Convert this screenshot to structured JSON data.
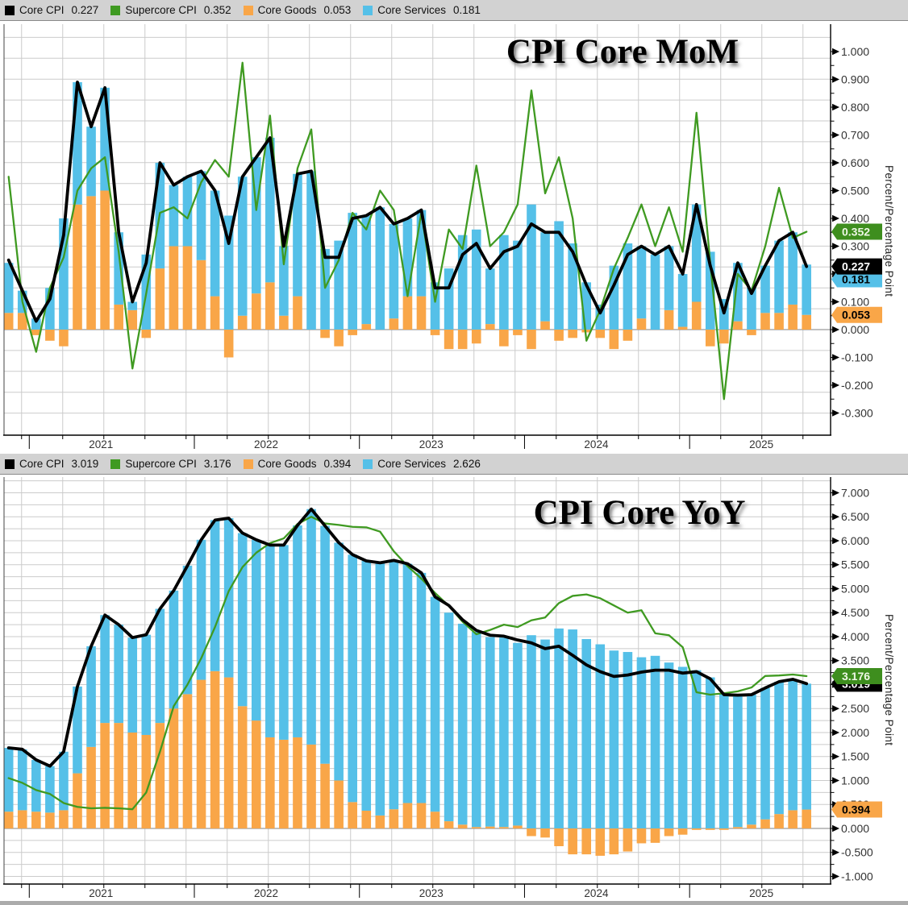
{
  "colors": {
    "black": "#000000",
    "green": "#3F9A21",
    "orange": "#F9A648",
    "blue": "#55C0E8",
    "green_tag": "#3E8E1E",
    "legend_bg": "#D2D2D2",
    "grid": "#CBCBCB",
    "zero_line": "#9B9B9B",
    "axis_line": "#000000",
    "axis_text": "#333333",
    "bottom_bar": "#ABABAB"
  },
  "chart_data": [
    {
      "type": "bar+line",
      "title": "CPI Core MoM",
      "y_axis_title": "Percent/Percentage Point",
      "legend": [
        {
          "label": "Core CPI",
          "value": "0.227",
          "color_key": "black"
        },
        {
          "label": "Supercore CPI",
          "value": "0.352",
          "color_key": "green"
        },
        {
          "label": "Core Goods",
          "value": "0.053",
          "color_key": "orange"
        },
        {
          "label": "Core Services",
          "value": "0.181",
          "color_key": "blue"
        }
      ],
      "x_start": "2020-11",
      "x_end": "2025-09",
      "years": [
        {
          "label": "2021",
          "month_index": 2
        },
        {
          "label": "2022",
          "month_index": 14
        },
        {
          "label": "2023",
          "month_index": 26
        },
        {
          "label": "2024",
          "month_index": 38
        },
        {
          "label": "2025",
          "month_index": 50
        }
      ],
      "y_axis": {
        "max": 1.0,
        "min": -0.3,
        "label_step": 0.1,
        "minor_step": 0.05,
        "decimals": 3
      },
      "series": {
        "core_goods": [
          0.06,
          0.06,
          -0.02,
          -0.04,
          -0.06,
          0.45,
          0.48,
          0.5,
          0.09,
          0.07,
          -0.03,
          0.22,
          0.3,
          0.3,
          0.25,
          0.12,
          -0.1,
          0.05,
          0.13,
          0.17,
          0.05,
          0.12,
          0.0,
          -0.03,
          -0.06,
          -0.02,
          0.02,
          0.0,
          0.04,
          0.12,
          0.12,
          -0.02,
          -0.07,
          -0.07,
          -0.05,
          0.02,
          -0.06,
          -0.02,
          -0.07,
          0.03,
          -0.04,
          -0.03,
          -0.01,
          -0.03,
          -0.07,
          -0.04,
          0.04,
          0.0,
          0.07,
          0.01,
          0.1,
          -0.06,
          -0.05,
          0.03,
          -0.02,
          0.06,
          0.06,
          0.09,
          0.053
        ],
        "core_services": [
          0.18,
          0.08,
          0.04,
          0.15,
          0.4,
          0.44,
          0.25,
          0.37,
          0.26,
          0.03,
          0.27,
          0.38,
          0.22,
          0.25,
          0.32,
          0.38,
          0.41,
          0.5,
          0.49,
          0.52,
          0.25,
          0.44,
          0.57,
          0.29,
          0.32,
          0.42,
          0.39,
          0.44,
          0.34,
          0.28,
          0.31,
          0.17,
          0.22,
          0.34,
          0.36,
          0.2,
          0.34,
          0.32,
          0.45,
          0.32,
          0.39,
          0.31,
          0.17,
          0.09,
          0.23,
          0.31,
          0.26,
          0.27,
          0.23,
          0.19,
          0.35,
          0.28,
          0.11,
          0.21,
          0.15,
          0.17,
          0.26,
          0.26,
          0.181
        ],
        "core_cpi": [
          0.25,
          0.14,
          0.03,
          0.11,
          0.34,
          0.89,
          0.73,
          0.87,
          0.35,
          0.1,
          0.24,
          0.6,
          0.52,
          0.55,
          0.57,
          0.5,
          0.31,
          0.55,
          0.62,
          0.69,
          0.3,
          0.56,
          0.57,
          0.26,
          0.26,
          0.4,
          0.41,
          0.44,
          0.38,
          0.4,
          0.43,
          0.15,
          0.15,
          0.27,
          0.31,
          0.22,
          0.28,
          0.3,
          0.38,
          0.35,
          0.35,
          0.28,
          0.16,
          0.06,
          0.16,
          0.27,
          0.3,
          0.27,
          0.3,
          0.2,
          0.45,
          0.23,
          0.06,
          0.24,
          0.13,
          0.23,
          0.32,
          0.35,
          0.227
        ],
        "supercore_cpi": [
          0.55,
          0.1,
          -0.08,
          0.15,
          0.26,
          0.5,
          0.58,
          0.62,
          0.28,
          -0.14,
          0.13,
          0.42,
          0.44,
          0.4,
          0.53,
          0.61,
          0.55,
          0.96,
          0.43,
          0.77,
          0.235,
          0.58,
          0.72,
          0.15,
          0.25,
          0.42,
          0.36,
          0.5,
          0.43,
          0.12,
          0.42,
          0.1,
          0.36,
          0.29,
          0.59,
          0.3,
          0.35,
          0.45,
          0.86,
          0.49,
          0.62,
          0.4,
          -0.04,
          0.07,
          0.22,
          0.33,
          0.45,
          0.3,
          0.44,
          0.28,
          0.78,
          0.24,
          -0.25,
          0.2,
          0.14,
          0.3,
          0.51,
          0.33,
          0.352
        ]
      },
      "axis_tags": [
        {
          "value": "0.181",
          "color_key": "blue",
          "text_color": "#000000"
        },
        {
          "value": "0.227",
          "color_key": "black",
          "text_color": "#ffffff"
        },
        {
          "value": "0.053",
          "color_key": "orange",
          "text_color": "#000000"
        },
        {
          "value": "0.352",
          "color_key": "green_tag",
          "text_color": "#eef7e6"
        }
      ]
    },
    {
      "type": "bar+line",
      "title": "CPI Core YoY",
      "y_axis_title": "Percent/Percentage Point",
      "legend": [
        {
          "label": "Core CPI",
          "value": "3.019",
          "color_key": "black"
        },
        {
          "label": "Supercore CPI",
          "value": "3.176",
          "color_key": "green"
        },
        {
          "label": "Core Goods",
          "value": "0.394",
          "color_key": "orange"
        },
        {
          "label": "Core Services",
          "value": "2.626",
          "color_key": "blue"
        }
      ],
      "x_start": "2020-11",
      "x_end": "2025-09",
      "years": [
        {
          "label": "2021",
          "month_index": 2
        },
        {
          "label": "2022",
          "month_index": 14
        },
        {
          "label": "2023",
          "month_index": 26
        },
        {
          "label": "2024",
          "month_index": 38
        },
        {
          "label": "2025",
          "month_index": 50
        }
      ],
      "y_axis": {
        "max": 7.0,
        "min": -1.0,
        "label_step": 0.5,
        "minor_step": 0.25,
        "decimals": 3
      },
      "series": {
        "core_goods": [
          0.35,
          0.38,
          0.35,
          0.33,
          0.38,
          1.15,
          1.7,
          2.2,
          2.2,
          2.0,
          1.95,
          2.2,
          2.5,
          2.8,
          3.1,
          3.28,
          3.15,
          2.55,
          2.25,
          1.9,
          1.85,
          1.9,
          1.75,
          1.35,
          1.0,
          0.55,
          0.37,
          0.27,
          0.4,
          0.53,
          0.53,
          0.35,
          0.15,
          0.08,
          0.03,
          0.04,
          0.03,
          0.06,
          -0.16,
          -0.19,
          -0.37,
          -0.54,
          -0.54,
          -0.57,
          -0.54,
          -0.48,
          -0.31,
          -0.3,
          -0.16,
          -0.13,
          -0.03,
          -0.03,
          -0.03,
          0.03,
          0.08,
          0.19,
          0.3,
          0.38,
          0.394
        ],
        "core_services": [
          1.33,
          1.27,
          1.08,
          0.97,
          1.22,
          1.81,
          2.1,
          2.25,
          2.05,
          1.98,
          2.09,
          2.38,
          2.46,
          2.68,
          2.92,
          3.15,
          3.32,
          3.61,
          3.77,
          4.01,
          4.06,
          4.42,
          4.91,
          4.96,
          4.96,
          5.16,
          5.21,
          5.27,
          5.19,
          4.99,
          4.8,
          4.48,
          4.35,
          4.19,
          4.07,
          3.95,
          3.95,
          3.81,
          4.03,
          3.94,
          4.17,
          4.15,
          3.95,
          3.84,
          3.71,
          3.68,
          3.57,
          3.6,
          3.46,
          3.37,
          3.3,
          3.15,
          2.82,
          2.75,
          2.71,
          2.74,
          2.76,
          2.73,
          2.626
        ],
        "core_cpi": [
          1.68,
          1.65,
          1.43,
          1.3,
          1.6,
          2.96,
          3.8,
          4.45,
          4.25,
          3.98,
          4.04,
          4.58,
          4.96,
          5.48,
          6.02,
          6.43,
          6.47,
          6.16,
          6.02,
          5.91,
          5.91,
          6.32,
          6.66,
          6.31,
          5.96,
          5.71,
          5.58,
          5.54,
          5.59,
          5.52,
          5.33,
          4.83,
          4.65,
          4.35,
          4.13,
          4.03,
          4.01,
          3.93,
          3.87,
          3.75,
          3.8,
          3.61,
          3.41,
          3.27,
          3.17,
          3.2,
          3.26,
          3.3,
          3.3,
          3.24,
          3.27,
          3.12,
          2.79,
          2.78,
          2.79,
          2.93,
          3.06,
          3.11,
          3.019
        ],
        "supercore_cpi": [
          1.05,
          0.95,
          0.8,
          0.72,
          0.53,
          0.45,
          0.42,
          0.43,
          0.42,
          0.4,
          0.75,
          1.6,
          2.55,
          3.0,
          3.55,
          4.2,
          4.95,
          5.45,
          5.75,
          5.95,
          6.05,
          6.35,
          6.5,
          6.36,
          6.33,
          6.29,
          6.28,
          6.19,
          5.78,
          5.47,
          5.21,
          4.91,
          4.64,
          4.31,
          4.05,
          4.14,
          4.25,
          4.2,
          4.34,
          4.4,
          4.7,
          4.85,
          4.88,
          4.8,
          4.65,
          4.5,
          4.55,
          4.07,
          4.03,
          3.78,
          2.84,
          2.79,
          2.82,
          2.86,
          2.94,
          3.18,
          3.19,
          3.21,
          3.176
        ]
      },
      "axis_tags": [
        {
          "value": "3.019",
          "color_key": "black",
          "text_color": "#ffffff"
        },
        {
          "value": "3.176",
          "color_key": "green_tag",
          "text_color": "#eef7e6"
        },
        {
          "value": "0.394",
          "color_key": "orange",
          "text_color": "#000000"
        }
      ]
    }
  ]
}
